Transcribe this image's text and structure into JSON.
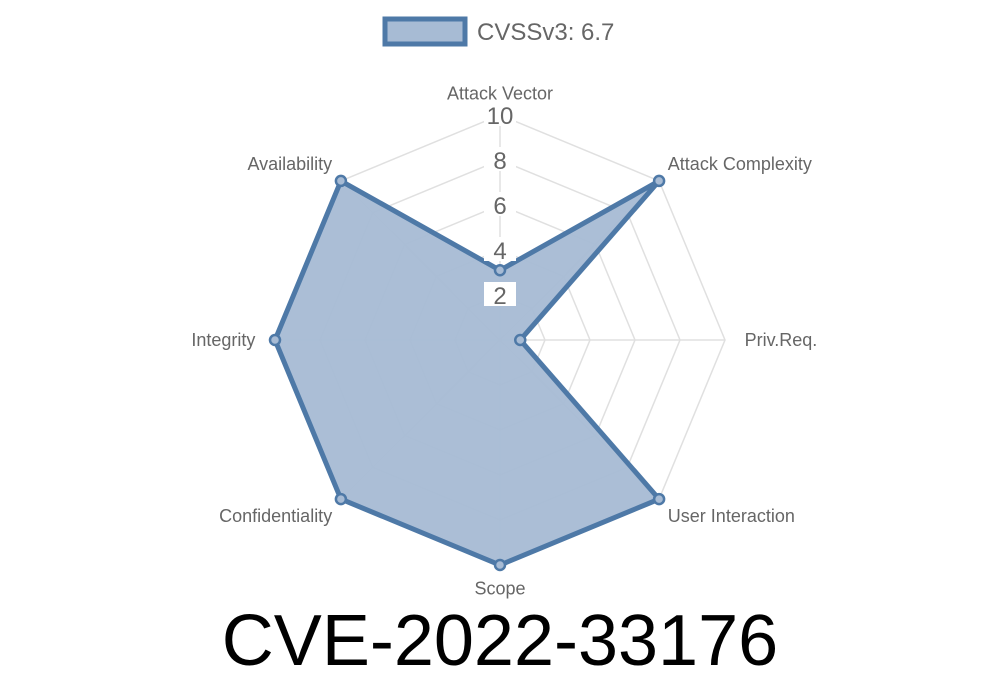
{
  "chart_data": {
    "type": "radar",
    "categories": [
      "Attack Vector",
      "Attack Complexity",
      "Priv.Req.",
      "User Interaction",
      "Scope",
      "Confidentiality",
      "Integrity",
      "Availability"
    ],
    "series": [
      {
        "name": "CVSSv3: 6.7",
        "values": [
          3.1,
          10,
          0.9,
          10,
          10,
          10,
          10,
          10
        ]
      }
    ],
    "rlim": [
      0,
      10
    ],
    "ticks": [
      "2",
      "4",
      "6",
      "8",
      "10"
    ],
    "legend": "top",
    "grid": true,
    "colors": {
      "stroke": "#4e79a7",
      "fill": "#a7bbd4",
      "grid": "#e0e0e0"
    }
  },
  "title": "CVE-2022-33176"
}
